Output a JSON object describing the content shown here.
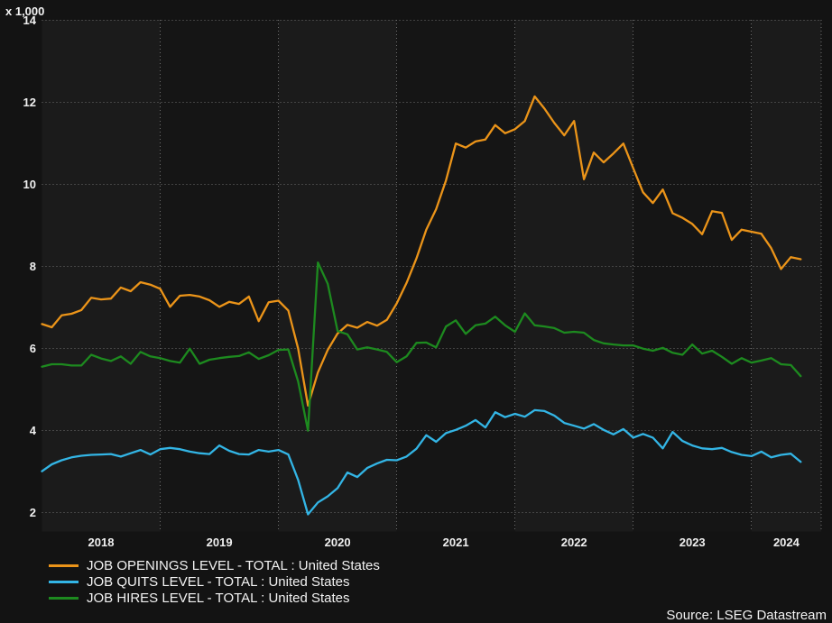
{
  "chart_data": {
    "type": "line",
    "title": "",
    "unit_label": "x 1,000",
    "source": "Source: LSEG Datastream",
    "frequency": "monthly",
    "x_start": "2018-01",
    "x_end": "2024-06",
    "x_tick_labels": [
      "2018",
      "2019",
      "2020",
      "2021",
      "2022",
      "2023",
      "2024"
    ],
    "y_ticks": [
      14,
      12,
      10,
      8,
      6,
      4,
      2
    ],
    "ylim": [
      2,
      14
    ],
    "grid": "dotted",
    "legend_position": "bottom-left",
    "series": [
      {
        "id": "openings",
        "name": "JOB OPENINGS LEVEL - TOTAL : United States",
        "color": "#eb9419",
        "values": [
          6.6,
          6.52,
          6.81,
          6.85,
          6.94,
          7.24,
          7.2,
          7.22,
          7.49,
          7.4,
          7.62,
          7.56,
          7.46,
          7.02,
          7.29,
          7.31,
          7.27,
          7.18,
          7.02,
          7.14,
          7.09,
          7.27,
          6.67,
          7.13,
          7.17,
          6.93,
          6.0,
          4.61,
          5.42,
          5.97,
          6.37,
          6.58,
          6.51,
          6.65,
          6.56,
          6.7,
          7.1,
          7.6,
          8.2,
          8.9,
          9.4,
          10.1,
          11.0,
          10.9,
          11.05,
          11.1,
          11.45,
          11.25,
          11.35,
          11.55,
          12.15,
          11.85,
          11.5,
          11.2,
          11.55,
          10.13,
          10.78,
          10.54,
          10.76,
          11.0,
          10.4,
          9.81,
          9.55,
          9.88,
          9.3,
          9.19,
          9.04,
          8.79,
          9.35,
          9.31,
          8.65,
          8.9,
          8.85,
          8.8,
          8.45,
          7.94,
          8.23,
          8.18
        ]
      },
      {
        "id": "quits",
        "name": "JOB QUITS LEVEL - TOTAL : United States",
        "color": "#33b5e5",
        "values": [
          3.01,
          3.18,
          3.28,
          3.35,
          3.39,
          3.41,
          3.42,
          3.43,
          3.37,
          3.45,
          3.53,
          3.42,
          3.55,
          3.58,
          3.55,
          3.49,
          3.45,
          3.43,
          3.64,
          3.51,
          3.43,
          3.42,
          3.53,
          3.49,
          3.53,
          3.42,
          2.8,
          1.96,
          2.25,
          2.4,
          2.6,
          2.98,
          2.87,
          3.09,
          3.2,
          3.29,
          3.28,
          3.37,
          3.56,
          3.89,
          3.73,
          3.94,
          4.02,
          4.12,
          4.26,
          4.08,
          4.45,
          4.33,
          4.41,
          4.34,
          4.5,
          4.48,
          4.37,
          4.19,
          4.12,
          4.05,
          4.16,
          4.02,
          3.91,
          4.04,
          3.83,
          3.92,
          3.83,
          3.57,
          3.97,
          3.75,
          3.64,
          3.57,
          3.55,
          3.58,
          3.48,
          3.41,
          3.38,
          3.49,
          3.35,
          3.41,
          3.44,
          3.24
        ]
      },
      {
        "id": "hires",
        "name": "JOB HIRES LEVEL - TOTAL : United States",
        "color": "#1d8a1f",
        "values": [
          5.56,
          5.62,
          5.62,
          5.59,
          5.59,
          5.85,
          5.76,
          5.7,
          5.81,
          5.63,
          5.92,
          5.81,
          5.77,
          5.7,
          5.66,
          6.0,
          5.63,
          5.73,
          5.77,
          5.8,
          5.82,
          5.91,
          5.75,
          5.84,
          5.97,
          5.98,
          5.2,
          4.0,
          8.1,
          7.58,
          6.43,
          6.35,
          5.98,
          6.03,
          5.98,
          5.92,
          5.67,
          5.81,
          6.14,
          6.15,
          6.03,
          6.54,
          6.69,
          6.36,
          6.57,
          6.61,
          6.78,
          6.57,
          6.41,
          6.86,
          6.57,
          6.54,
          6.5,
          6.39,
          6.41,
          6.39,
          6.21,
          6.13,
          6.1,
          6.08,
          6.08,
          6.0,
          5.95,
          6.02,
          5.9,
          5.85,
          6.1,
          5.88,
          5.95,
          5.8,
          5.63,
          5.77,
          5.66,
          5.71,
          5.77,
          5.62,
          5.6,
          5.33
        ]
      }
    ]
  }
}
